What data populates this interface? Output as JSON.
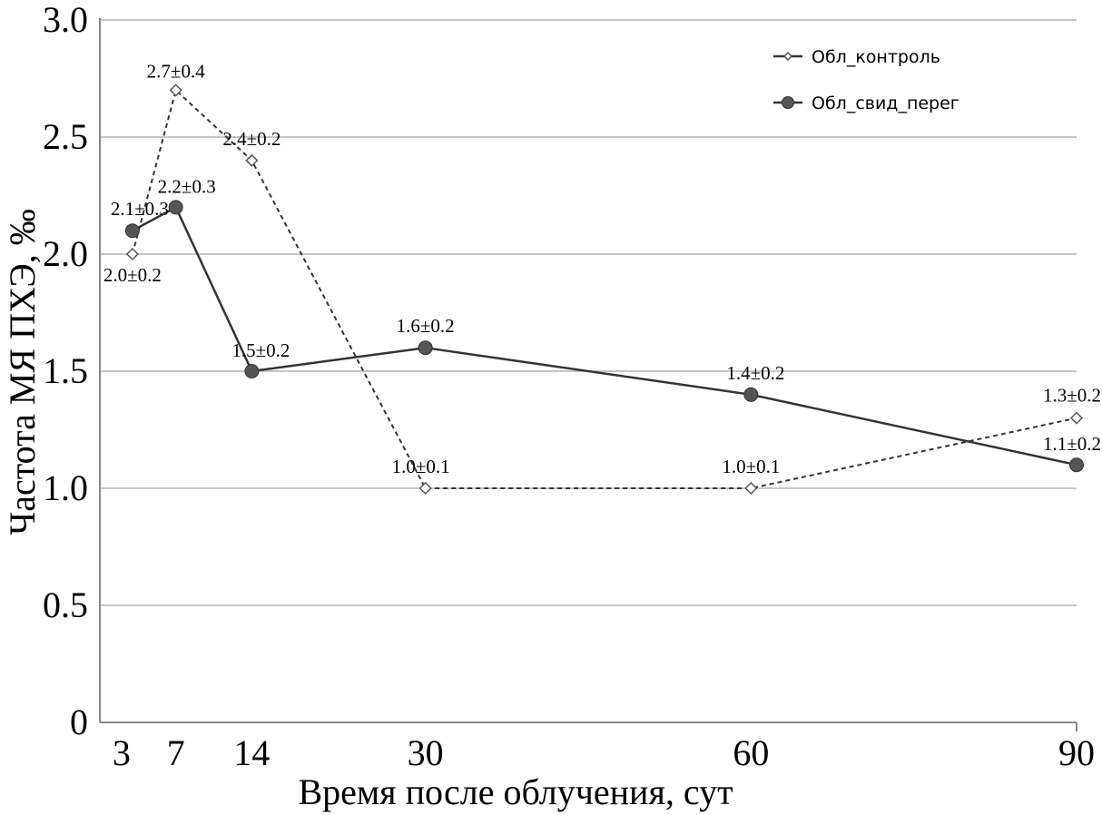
{
  "chart_data": {
    "type": "line",
    "title": "",
    "xlabel": "Время после облучения, сут",
    "ylabel": "Частота МЯ ПХЭ, ‰",
    "xlim": [
      0,
      90
    ],
    "ylim": [
      0,
      3.0
    ],
    "x_ticks": [
      "3",
      "7",
      "14",
      "30",
      "60",
      "90"
    ],
    "y_ticks": [
      "0",
      "0.5",
      "1.0",
      "1.5",
      "2.0",
      "2.5",
      "3.0"
    ],
    "grid": "horizontal",
    "legend_position": "top-right",
    "series": [
      {
        "name": "Обл_контроль",
        "style": "dashed",
        "marker": "open-diamond",
        "color": "#444444",
        "points": [
          {
            "x": 3,
            "y": 2.0,
            "label": "2.0±0.2"
          },
          {
            "x": 7,
            "y": 2.7,
            "label": "2.7±0.4"
          },
          {
            "x": 14,
            "y": 2.4,
            "label": "2.4±0.2"
          },
          {
            "x": 30,
            "y": 1.0,
            "label": "1.0±0.1"
          },
          {
            "x": 60,
            "y": 1.0,
            "label": "1.0±0.1"
          },
          {
            "x": 90,
            "y": 1.3,
            "label": "1.3±0.2"
          }
        ]
      },
      {
        "name": "Обл_свид_перег",
        "style": "solid",
        "marker": "filled-circle",
        "color": "#555555",
        "points": [
          {
            "x": 3,
            "y": 2.1,
            "label": "2.1±0.3"
          },
          {
            "x": 7,
            "y": 2.2,
            "label": "2.2±0.3"
          },
          {
            "x": 14,
            "y": 1.5,
            "label": "1.5±0.2"
          },
          {
            "x": 30,
            "y": 1.6,
            "label": "1.6±0.2"
          },
          {
            "x": 60,
            "y": 1.4,
            "label": "1.4±0.2"
          },
          {
            "x": 90,
            "y": 1.1,
            "label": "1.1±0.2"
          }
        ]
      }
    ]
  }
}
